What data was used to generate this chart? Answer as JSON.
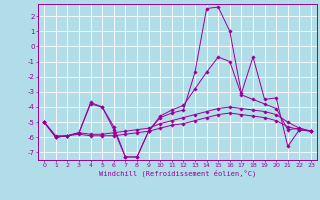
{
  "xlabel": "Windchill (Refroidissement éolien,°C)",
  "bg_color": "#b0dde8",
  "line_color": "#990099",
  "xlim": [
    -0.5,
    23.5
  ],
  "ylim": [
    -7.5,
    2.8
  ],
  "yticks": [
    -7,
    -6,
    -5,
    -4,
    -3,
    -2,
    -1,
    0,
    1,
    2
  ],
  "xticks": [
    0,
    1,
    2,
    3,
    4,
    5,
    6,
    7,
    8,
    9,
    10,
    11,
    12,
    13,
    14,
    15,
    16,
    17,
    18,
    19,
    20,
    21,
    22,
    23
  ],
  "series": [
    {
      "x": [
        0,
        1,
        2,
        3,
        4,
        5,
        6,
        7,
        8,
        9,
        10,
        11,
        12,
        13,
        14,
        15,
        16,
        17,
        18,
        19,
        20,
        21,
        22,
        23
      ],
      "y": [
        -5.0,
        -6.0,
        -5.9,
        -5.7,
        -3.8,
        -4.0,
        -5.5,
        -7.3,
        -7.3,
        -5.6,
        -4.7,
        -4.4,
        -4.2,
        -1.7,
        2.5,
        2.6,
        1.0,
        -3.1,
        -0.7,
        -3.5,
        -3.4,
        -6.6,
        -5.5,
        -5.6
      ]
    },
    {
      "x": [
        0,
        1,
        2,
        3,
        4,
        5,
        6,
        7,
        8,
        9,
        10,
        11,
        12,
        13,
        14,
        15,
        16,
        17,
        18,
        19,
        20,
        21,
        22,
        23
      ],
      "y": [
        -5.0,
        -6.0,
        -5.9,
        -5.7,
        -3.7,
        -4.0,
        -5.3,
        -7.3,
        -7.3,
        -5.6,
        -4.6,
        -4.2,
        -3.9,
        -2.8,
        -1.7,
        -0.7,
        -1.0,
        -3.2,
        -3.5,
        -3.8,
        -4.1,
        -5.5,
        -5.4,
        -5.6
      ]
    },
    {
      "x": [
        0,
        1,
        2,
        3,
        4,
        5,
        6,
        7,
        8,
        9,
        10,
        11,
        12,
        13,
        14,
        15,
        16,
        17,
        18,
        19,
        20,
        21,
        22,
        23
      ],
      "y": [
        -5.0,
        -6.0,
        -5.9,
        -5.7,
        -5.8,
        -5.8,
        -5.7,
        -5.6,
        -5.5,
        -5.4,
        -5.1,
        -4.9,
        -4.7,
        -4.5,
        -4.3,
        -4.1,
        -4.0,
        -4.1,
        -4.2,
        -4.3,
        -4.5,
        -5.0,
        -5.4,
        -5.6
      ]
    },
    {
      "x": [
        0,
        1,
        2,
        3,
        4,
        5,
        6,
        7,
        8,
        9,
        10,
        11,
        12,
        13,
        14,
        15,
        16,
        17,
        18,
        19,
        20,
        21,
        22,
        23
      ],
      "y": [
        -5.0,
        -5.9,
        -5.9,
        -5.8,
        -5.9,
        -5.9,
        -5.9,
        -5.8,
        -5.7,
        -5.6,
        -5.4,
        -5.2,
        -5.1,
        -4.9,
        -4.7,
        -4.5,
        -4.4,
        -4.5,
        -4.6,
        -4.7,
        -4.9,
        -5.3,
        -5.5,
        -5.6
      ]
    }
  ]
}
